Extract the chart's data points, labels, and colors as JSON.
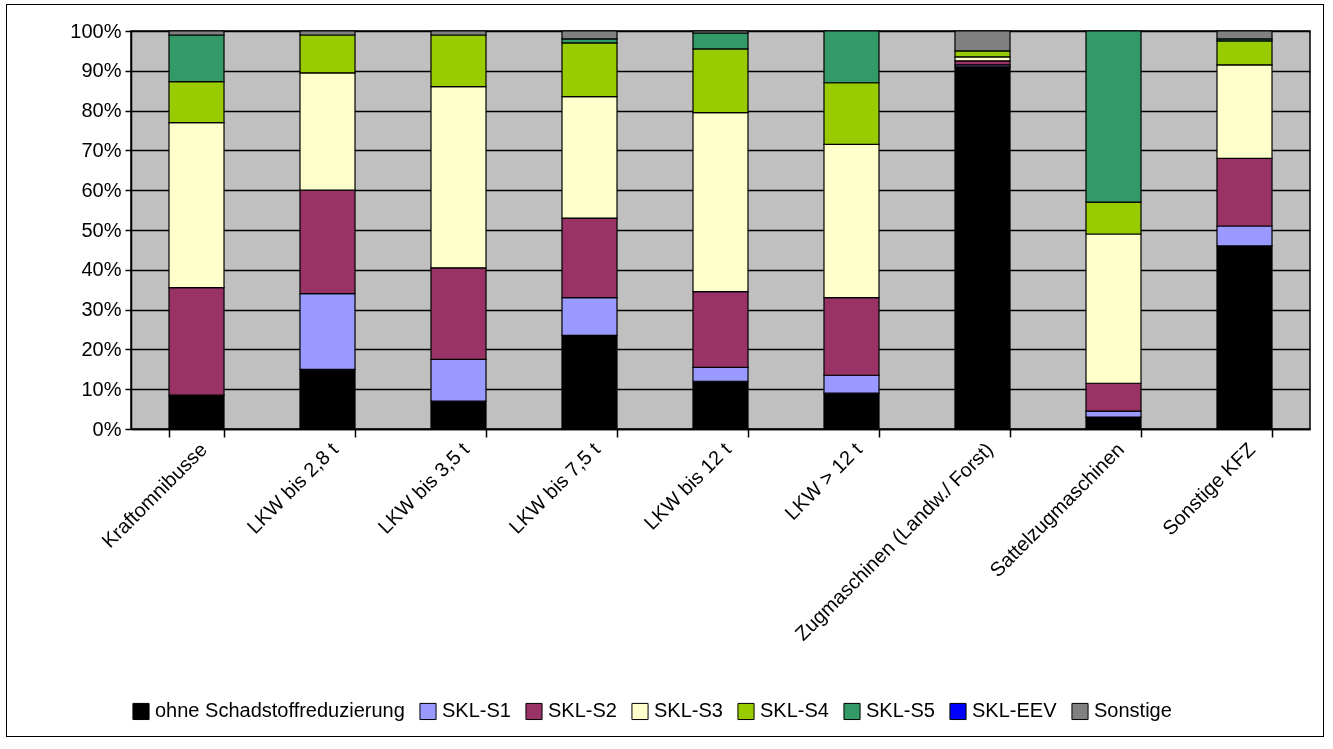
{
  "chart_data": {
    "type": "bar",
    "stacked": true,
    "categories": [
      "Kraftomnibusse",
      "LKW bis 2,8 t",
      "LKW bis 3,5 t",
      "LKW bis 7,5 t",
      "LKW bis 12 t",
      "LKW > 12 t",
      "Zugmaschinen (Landw./ Forst)",
      "Sattelzugmaschinen",
      "Sonstige KFZ"
    ],
    "series": [
      {
        "name": "ohne Schadstoffreduzierung",
        "color": "#000000",
        "values": [
          8.5,
          15,
          7,
          23.5,
          12,
          9,
          91,
          3,
          46
        ]
      },
      {
        "name": "SKL-S1",
        "color": "#9999ff",
        "values": [
          0,
          19,
          10.5,
          9.5,
          3.5,
          4.5,
          0.5,
          1.5,
          5
        ]
      },
      {
        "name": "SKL-S2",
        "color": "#993366",
        "values": [
          27,
          26,
          23,
          20,
          19,
          19.5,
          1,
          7,
          17
        ]
      },
      {
        "name": "SKL-S3",
        "color": "#ffffcc",
        "values": [
          41.5,
          29.5,
          45.5,
          30.5,
          45,
          38.5,
          1,
          37.5,
          23.5
        ]
      },
      {
        "name": "SKL-S4",
        "color": "#99cc00",
        "values": [
          10.3,
          9.5,
          13,
          13.5,
          16,
          15.5,
          1.5,
          8,
          6
        ]
      },
      {
        "name": "SKL-S5",
        "color": "#339966",
        "values": [
          11.7,
          0,
          0,
          1,
          4,
          13,
          0,
          43,
          0.5
        ]
      },
      {
        "name": "SKL-EEV",
        "color": "#0000ff",
        "values": [
          0,
          0,
          0,
          0,
          0,
          0,
          0,
          0,
          0
        ]
      },
      {
        "name": "Sonstige",
        "color": "#808080",
        "values": [
          1,
          1,
          1,
          2,
          0.5,
          0,
          5,
          0,
          2
        ]
      }
    ],
    "ylim": [
      0,
      100
    ],
    "yticks": [
      {
        "value": 0,
        "label": "0%"
      },
      {
        "value": 10,
        "label": "10%"
      },
      {
        "value": 20,
        "label": "20%"
      },
      {
        "value": 30,
        "label": "30%"
      },
      {
        "value": 40,
        "label": "40%"
      },
      {
        "value": 50,
        "label": "50%"
      },
      {
        "value": 60,
        "label": "60%"
      },
      {
        "value": 70,
        "label": "70%"
      },
      {
        "value": 80,
        "label": "80%"
      },
      {
        "value": 90,
        "label": "90%"
      },
      {
        "value": 100,
        "label": "100%"
      }
    ],
    "grid": "y",
    "legend": "bottom"
  }
}
